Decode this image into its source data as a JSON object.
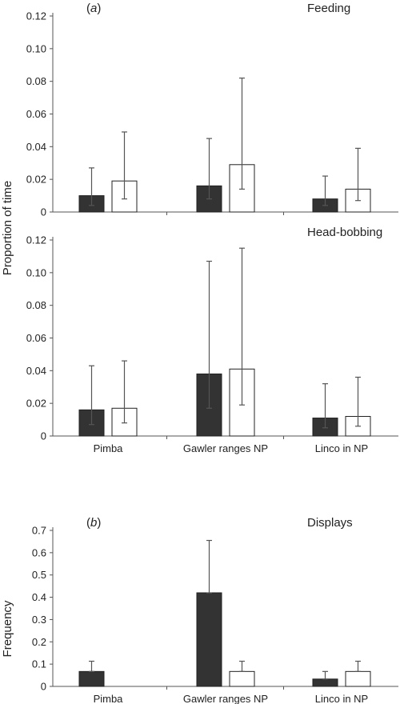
{
  "chart_data": [
    {
      "type": "bar",
      "letter": "(a)",
      "title": "Feeding",
      "ylabel": "Proportion of time",
      "ylim": [
        0,
        0.12
      ],
      "yticks": [
        "0",
        "0.02",
        "0.04",
        "0.06",
        "0.08",
        "0.10",
        "0.12"
      ],
      "categories": [
        "Pimba",
        "Gawler ranges NP",
        "Linco in NP"
      ],
      "show_xlabels": false,
      "series": [
        {
          "color": "#333333",
          "values": [
            0.01,
            0.016,
            0.008
          ],
          "err_low": [
            0.004,
            0.008,
            0.004
          ],
          "err_high": [
            0.027,
            0.045,
            0.022
          ]
        },
        {
          "color": "#ffffff",
          "values": [
            0.019,
            0.029,
            0.014
          ],
          "err_low": [
            0.008,
            0.014,
            0.007
          ],
          "err_high": [
            0.049,
            0.082,
            0.039
          ]
        }
      ]
    },
    {
      "type": "bar",
      "letter": "",
      "title": "Head-bobbing",
      "ylabel": "",
      "ylim": [
        0,
        0.12
      ],
      "yticks": [
        "0",
        "0.02",
        "0.04",
        "0.06",
        "0.08",
        "0.10",
        "0.12"
      ],
      "categories": [
        "Pimba",
        "Gawler ranges NP",
        "Linco in NP"
      ],
      "show_xlabels": true,
      "series": [
        {
          "color": "#333333",
          "values": [
            0.016,
            0.038,
            0.011
          ],
          "err_low": [
            0.007,
            0.017,
            0.005
          ],
          "err_high": [
            0.043,
            0.107,
            0.032
          ]
        },
        {
          "color": "#ffffff",
          "values": [
            0.017,
            0.041,
            0.012
          ],
          "err_low": [
            0.008,
            0.019,
            0.006
          ],
          "err_high": [
            0.046,
            0.115,
            0.036
          ]
        }
      ]
    },
    {
      "type": "bar",
      "letter": "(b)",
      "title": "Displays",
      "ylabel": "Frequency",
      "ylim": [
        0,
        0.7
      ],
      "yticks": [
        "0",
        "0.1",
        "0.2",
        "0.3",
        "0.4",
        "0.5",
        "0.6",
        "0.7"
      ],
      "categories": [
        "Pimba",
        "Gawler ranges NP",
        "Linco in NP"
      ],
      "show_xlabels": true,
      "series": [
        {
          "color": "#333333",
          "values": [
            0.067,
            0.42,
            0.033
          ],
          "err_low": [
            0.067,
            0.42,
            0.033
          ],
          "err_high": [
            0.113,
            0.655,
            0.067
          ]
        },
        {
          "color": "#ffffff",
          "values": [
            0,
            0.067,
            0.067
          ],
          "err_low": [
            0,
            0.067,
            0.067
          ],
          "err_high": [
            0,
            0.113,
            0.113
          ]
        }
      ]
    }
  ]
}
